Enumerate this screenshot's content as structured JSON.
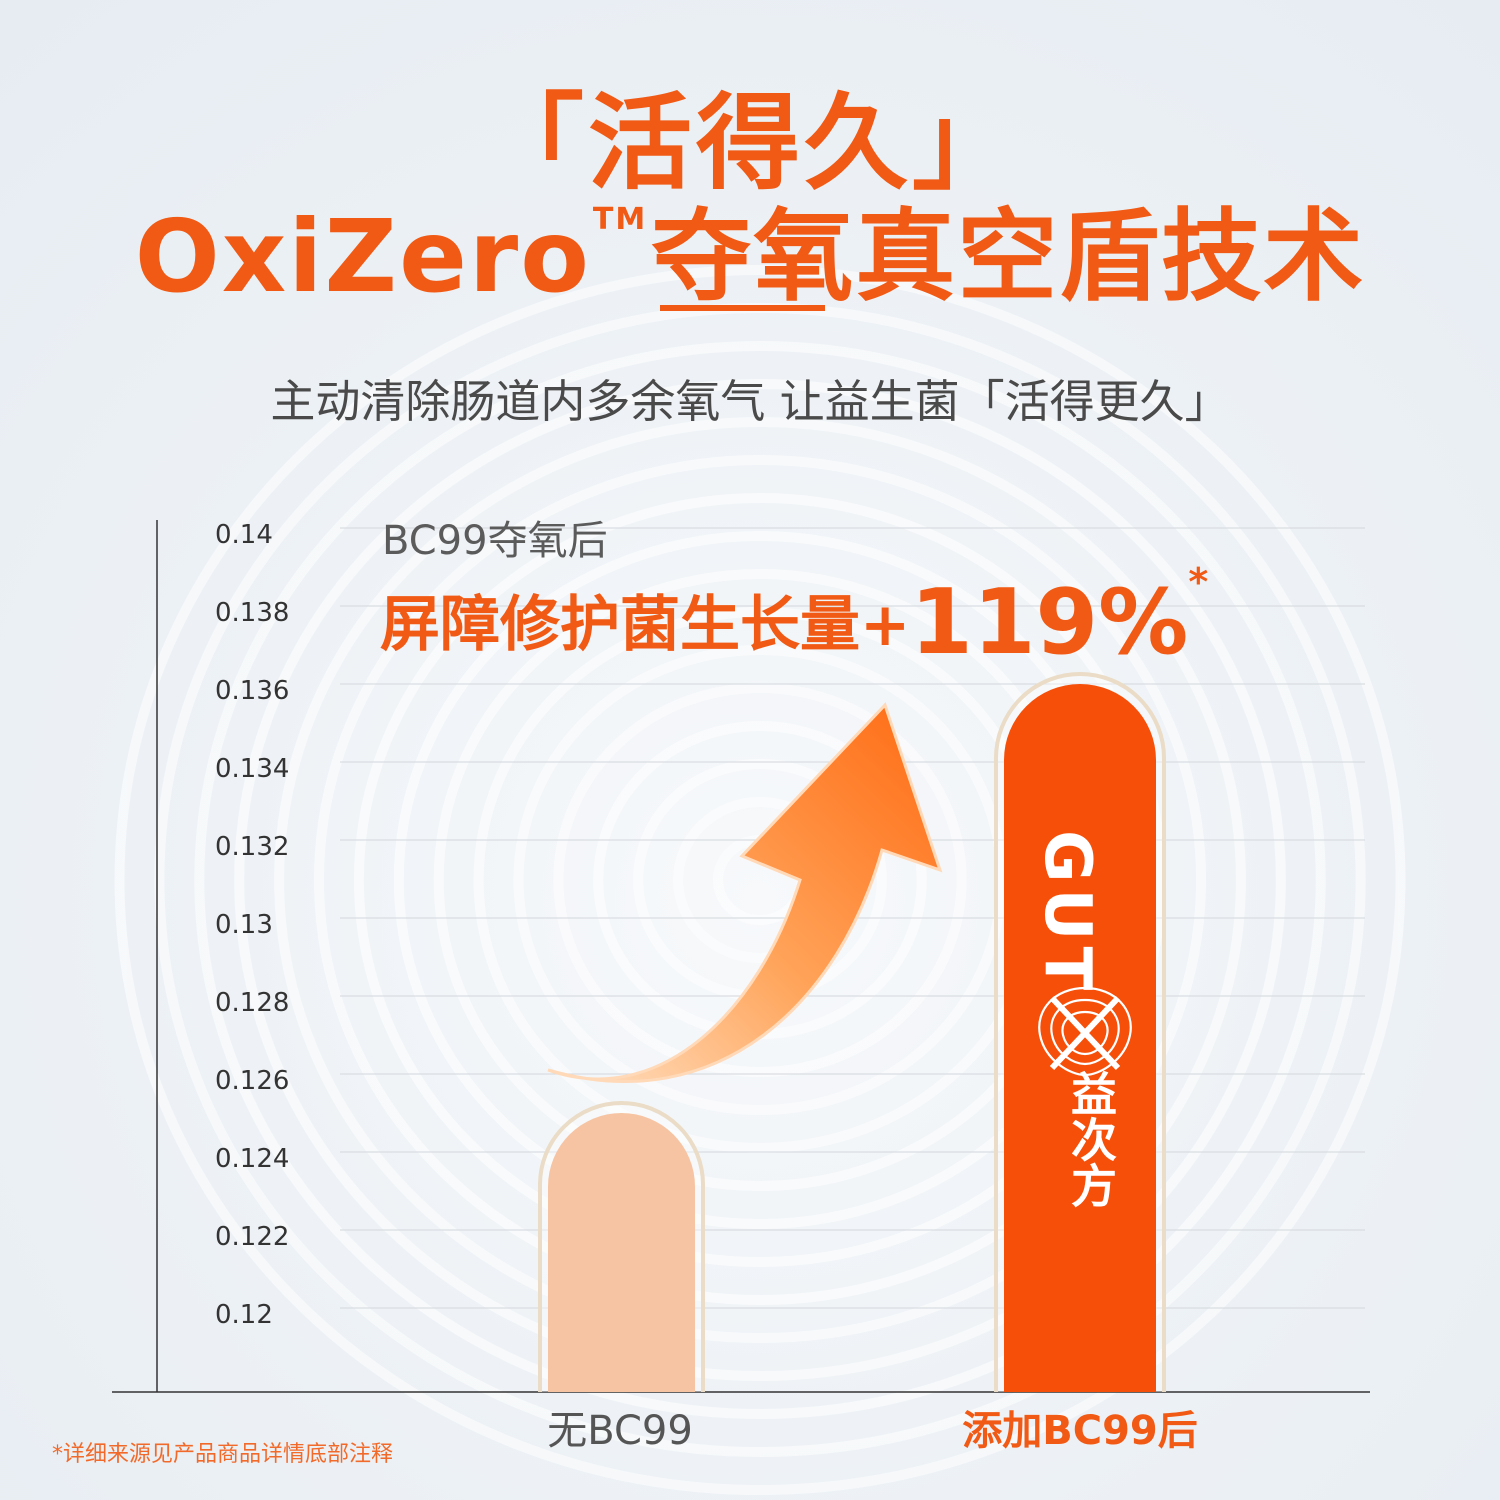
{
  "header": {
    "title_line1": "「活得久」",
    "title_line2_brand": "OxiZero",
    "title_line2_tm": "TM",
    "title_line2_rest": "夺氧真空盾技术",
    "subtitle": "主动清除肠道内多余氧气  让益生菌「活得更久」"
  },
  "annotation": {
    "small": "BC99夺氧后",
    "big_text": "屏障修护菌生长量+",
    "big_pct": "119%",
    "asterisk": "*"
  },
  "footnote": "*详细来源见产品商品详情底部注释",
  "logo": {
    "text": "GUT",
    "subtext": "益次方"
  },
  "colors": {
    "accent": "#f15a14",
    "bar_light": "#f6c4a3",
    "bar_dark": "#f54f0a",
    "grid": "#d9dde2",
    "axis": "#333333"
  },
  "chart_data": {
    "type": "bar",
    "categories": [
      "无BC99",
      "添加BC99后"
    ],
    "values": [
      0.125,
      0.136
    ],
    "title": "",
    "xlabel": "",
    "ylabel": "",
    "ylim": [
      0.118,
      0.14
    ],
    "yticks": [
      0.14,
      0.138,
      0.136,
      0.134,
      0.132,
      0.13,
      0.128,
      0.126,
      0.124,
      0.122,
      0.12
    ],
    "ytick_labels": [
      "0.14",
      "0.138",
      "0.136",
      "0.134",
      "0.132",
      "0.13",
      "0.128",
      "0.126",
      "0.124",
      "0.122",
      "0.12"
    ],
    "grid": true,
    "legend": "none"
  }
}
